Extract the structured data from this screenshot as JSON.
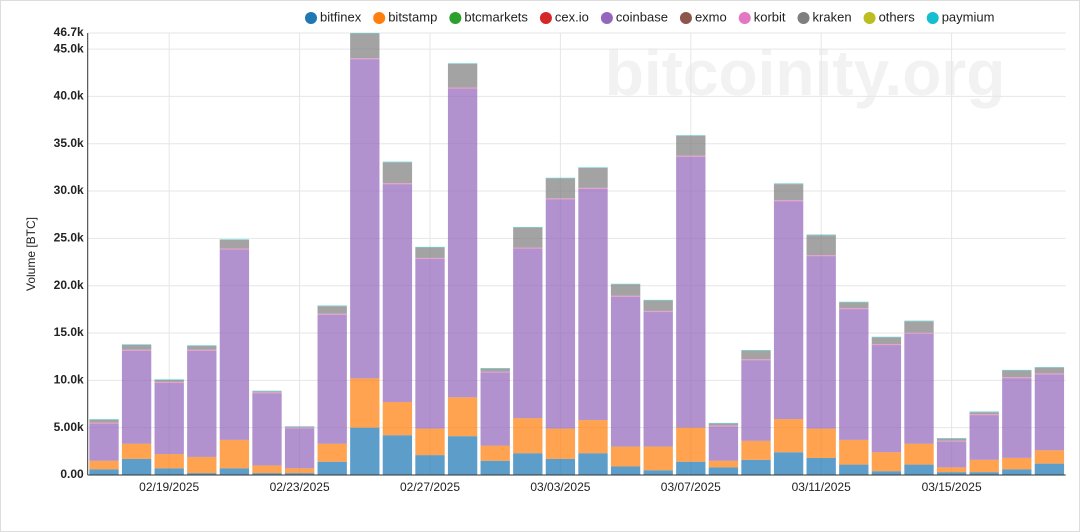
{
  "chart_data": {
    "type": "stacked_bar",
    "watermark": "bitcoinity.org",
    "y_label": "Volume [BTC]",
    "categories": [
      null,
      null,
      "02/19/2025",
      null,
      null,
      null,
      "02/23/2025",
      null,
      null,
      null,
      "02/27/2025",
      null,
      null,
      null,
      "03/03/2025",
      null,
      null,
      null,
      "03/07/2025",
      null,
      null,
      null,
      "03/11/2025",
      null,
      null,
      null,
      "03/15/2025",
      null,
      null,
      null
    ],
    "ylim": [
      0,
      46700
    ],
    "yticks": [
      {
        "value": 0,
        "label": "0.00"
      },
      {
        "value": 5000,
        "label": "5.00k"
      },
      {
        "value": 10000,
        "label": "10.0k"
      },
      {
        "value": 15000,
        "label": "15.0k"
      },
      {
        "value": 20000,
        "label": "20.0k"
      },
      {
        "value": 25000,
        "label": "25.0k"
      },
      {
        "value": 30000,
        "label": "30.0k"
      },
      {
        "value": 35000,
        "label": "35.0k"
      },
      {
        "value": 40000,
        "label": "40.0k"
      },
      {
        "value": 45000,
        "label": "45.0k"
      },
      {
        "value": 46700,
        "label": "46.7k"
      }
    ],
    "grid": true,
    "series": [
      {
        "name": "bitfinex",
        "color": "#1f77b4",
        "values": [
          600,
          1700,
          700,
          200,
          700,
          200,
          200,
          1400,
          5000,
          4200,
          2100,
          4100,
          1500,
          2300,
          1700,
          2300,
          900,
          500,
          1400,
          800,
          1600,
          2400,
          1800,
          1100,
          400,
          1100,
          300,
          300,
          600,
          1200
        ]
      },
      {
        "name": "bitstamp",
        "color": "#ff7f0e",
        "values": [
          900,
          1600,
          1500,
          1700,
          3000,
          800,
          500,
          1900,
          5200,
          3500,
          2800,
          4100,
          1600,
          3700,
          3200,
          3500,
          2100,
          2500,
          3600,
          700,
          2000,
          3500,
          3100,
          2600,
          2000,
          2200,
          500,
          1300,
          1200,
          1400
        ]
      },
      {
        "name": "btcmarkets",
        "color": "#2ca02c",
        "values": [
          5,
          5,
          5,
          5,
          5,
          5,
          5,
          5,
          5,
          5,
          5,
          5,
          5,
          5,
          5,
          5,
          5,
          5,
          5,
          5,
          5,
          5,
          5,
          5,
          5,
          5,
          5,
          5,
          5,
          5
        ]
      },
      {
        "name": "cex.io",
        "color": "#d62728",
        "values": [
          10,
          10,
          10,
          10,
          10,
          10,
          10,
          10,
          10,
          10,
          10,
          10,
          10,
          10,
          10,
          10,
          10,
          10,
          10,
          10,
          10,
          10,
          10,
          10,
          10,
          10,
          10,
          10,
          10,
          10
        ]
      },
      {
        "name": "coinbase",
        "color": "#9467bd",
        "values": [
          3900,
          9800,
          7500,
          11200,
          20100,
          7600,
          4200,
          13600,
          33700,
          23000,
          17900,
          32600,
          7700,
          17900,
          24200,
          24400,
          15800,
          14200,
          28600,
          3600,
          8500,
          23000,
          18200,
          13800,
          11300,
          11600,
          2700,
          4700,
          8400,
          8000
        ]
      },
      {
        "name": "exmo",
        "color": "#8c564b",
        "values": [
          20,
          20,
          20,
          20,
          20,
          20,
          20,
          20,
          20,
          20,
          20,
          20,
          20,
          20,
          20,
          20,
          20,
          20,
          20,
          20,
          20,
          20,
          20,
          20,
          20,
          20,
          20,
          20,
          20,
          20
        ]
      },
      {
        "name": "korbit",
        "color": "#e377c2",
        "values": [
          100,
          100,
          100,
          100,
          100,
          100,
          100,
          100,
          100,
          100,
          100,
          100,
          100,
          100,
          100,
          100,
          100,
          100,
          100,
          100,
          100,
          100,
          100,
          100,
          100,
          100,
          100,
          100,
          100,
          100
        ]
      },
      {
        "name": "kraken",
        "color": "#7f7f7f",
        "values": [
          300,
          500,
          200,
          400,
          900,
          100,
          50,
          800,
          2600,
          2200,
          1100,
          2500,
          300,
          2100,
          2100,
          2100,
          1200,
          1100,
          2100,
          200,
          900,
          1700,
          2100,
          600,
          700,
          1200,
          200,
          200,
          700,
          600
        ]
      },
      {
        "name": "others",
        "color": "#bcbd22",
        "values": [
          10,
          10,
          10,
          10,
          10,
          10,
          10,
          10,
          10,
          10,
          10,
          10,
          10,
          10,
          10,
          10,
          10,
          10,
          10,
          10,
          10,
          10,
          10,
          10,
          10,
          10,
          10,
          10,
          10,
          10
        ]
      },
      {
        "name": "paymium",
        "color": "#17becf",
        "values": [
          60,
          60,
          60,
          60,
          60,
          60,
          60,
          60,
          60,
          60,
          60,
          60,
          60,
          60,
          60,
          60,
          60,
          60,
          60,
          60,
          60,
          60,
          60,
          60,
          60,
          60,
          60,
          60,
          60,
          60
        ]
      }
    ]
  }
}
